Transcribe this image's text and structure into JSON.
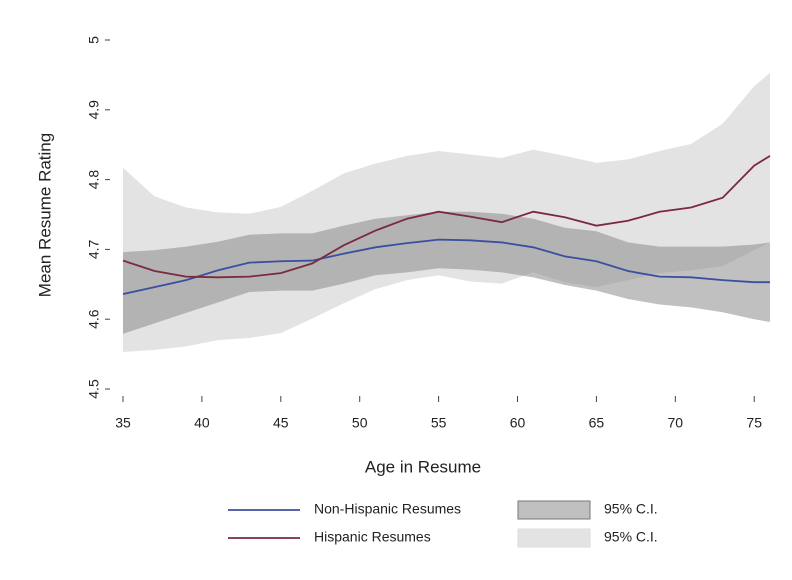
{
  "chart_data": {
    "type": "line-band",
    "x_label": "Age in Resume",
    "y_label": "Mean Resume Rating",
    "x": [
      35,
      37,
      39,
      41,
      43,
      45,
      47,
      49,
      51,
      53,
      55,
      57,
      59,
      61,
      63,
      65,
      67,
      69,
      71,
      73,
      75,
      76
    ],
    "series": [
      {
        "name": "Non-Hispanic Resumes",
        "color": "#3b4fa0",
        "values": [
          4.636,
          4.646,
          4.656,
          4.67,
          4.681,
          4.683,
          4.684,
          4.694,
          4.703,
          4.709,
          4.714,
          4.713,
          4.71,
          4.703,
          4.69,
          4.683,
          4.669,
          4.661,
          4.66,
          4.656,
          4.653,
          4.653
        ]
      },
      {
        "name": "Hispanic Resumes",
        "color": "#7a2a3e",
        "values": [
          4.684,
          4.669,
          4.661,
          4.66,
          4.661,
          4.666,
          4.68,
          4.706,
          4.727,
          4.744,
          4.754,
          4.747,
          4.739,
          4.754,
          4.746,
          4.734,
          4.741,
          4.754,
          4.76,
          4.774,
          4.82,
          4.834
        ]
      }
    ],
    "bands": [
      {
        "name": "95% C.I.",
        "color": "#8c8c8c",
        "upper": [
          4.696,
          4.699,
          4.704,
          4.711,
          4.721,
          4.723,
          4.723,
          4.734,
          4.744,
          4.749,
          4.754,
          4.754,
          4.751,
          4.744,
          4.731,
          4.726,
          4.71,
          4.704,
          4.704,
          4.704,
          4.707,
          4.71
        ],
        "lower": [
          4.579,
          4.594,
          4.609,
          4.624,
          4.639,
          4.641,
          4.641,
          4.651,
          4.663,
          4.667,
          4.673,
          4.671,
          4.667,
          4.66,
          4.649,
          4.641,
          4.629,
          4.621,
          4.617,
          4.61,
          4.6,
          4.596
        ]
      },
      {
        "name": "95% C.I.",
        "color": "#dcdcdc",
        "upper": [
          4.817,
          4.776,
          4.76,
          4.753,
          4.751,
          4.761,
          4.784,
          4.809,
          4.823,
          4.834,
          4.841,
          4.836,
          4.831,
          4.843,
          4.834,
          4.824,
          4.829,
          4.841,
          4.851,
          4.88,
          4.934,
          4.953
        ],
        "lower": [
          4.553,
          4.556,
          4.561,
          4.57,
          4.573,
          4.58,
          4.601,
          4.623,
          4.643,
          4.656,
          4.663,
          4.654,
          4.651,
          4.667,
          4.653,
          4.646,
          4.656,
          4.666,
          4.67,
          4.676,
          4.699,
          4.71
        ]
      }
    ],
    "xlim": [
      35,
      76
    ],
    "xticks": [
      35,
      40,
      45,
      50,
      55,
      60,
      65,
      70,
      75
    ],
    "ylim": [
      4.5,
      5
    ],
    "yticks": [
      4.5,
      4.6,
      4.7,
      4.8,
      4.9,
      5
    ],
    "grid": false
  }
}
